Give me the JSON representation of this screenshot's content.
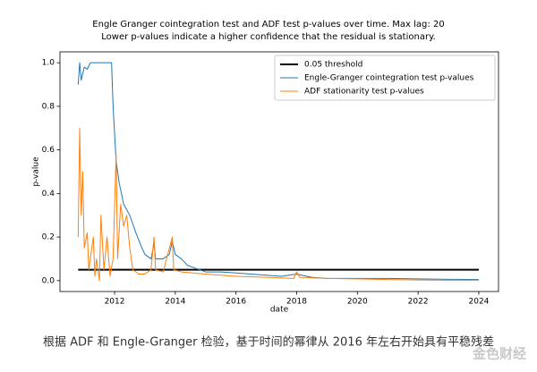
{
  "chart_data": {
    "type": "line",
    "title": "Engle Granger cointegration test and ADF test p-values over time. Max lag: 20",
    "subtitle": "Lower p-values indicate a higher confidence that the residual is stationary.",
    "xlabel": "date",
    "ylabel": "p-value",
    "xlim": [
      2010.2,
      2024.65
    ],
    "xticks": [
      2012,
      2014,
      2016,
      2018,
      2020,
      2022,
      2024
    ],
    "ylim": [
      -0.05,
      1.05
    ],
    "yticks": [
      {
        "value": 0,
        "label": "0.0"
      },
      0.2,
      0.4,
      0.6,
      0.8,
      {
        "value": 1,
        "label": "1.0"
      }
    ],
    "grid": false,
    "legend": "upper right",
    "series": [
      {
        "name": "0.05 threshold",
        "color": "#000000",
        "x": [
          2010.8,
          2024
        ],
        "values": [
          0.05,
          0.05
        ]
      },
      {
        "name": "Engle-Granger cointegration test p-values",
        "color": "#1f77b4",
        "x": [
          2010.8,
          2010.85,
          2010.9,
          2011.0,
          2011.1,
          2011.2,
          2011.5,
          2011.9,
          2011.95,
          2012.05,
          2012.15,
          2012.3,
          2012.5,
          2012.7,
          2012.9,
          2013.0,
          2013.2,
          2013.3,
          2013.35,
          2013.6,
          2013.8,
          2013.9,
          2014.0,
          2014.2,
          2014.4,
          2014.6,
          2015.0,
          2015.5,
          2016.0,
          2016.5,
          2017.0,
          2017.5,
          2018.0,
          2018.5,
          2019.0,
          2020.0,
          2021.0,
          2022.0,
          2023.0,
          2024.0
        ],
        "values": [
          0.9,
          1.0,
          0.92,
          0.98,
          0.97,
          1.0,
          1.0,
          1.0,
          0.8,
          0.55,
          0.45,
          0.35,
          0.3,
          0.22,
          0.15,
          0.12,
          0.1,
          0.17,
          0.1,
          0.1,
          0.12,
          0.18,
          0.12,
          0.1,
          0.07,
          0.06,
          0.04,
          0.04,
          0.035,
          0.03,
          0.025,
          0.02,
          0.03,
          0.015,
          0.01,
          0.01,
          0.01,
          0.008,
          0.006,
          0.005
        ]
      },
      {
        "name": "ADF stationarity test p-values",
        "color": "#ff7f0e",
        "x": [
          2010.8,
          2010.85,
          2010.9,
          2010.95,
          2011.0,
          2011.1,
          2011.15,
          2011.3,
          2011.35,
          2011.4,
          2011.5,
          2011.55,
          2011.65,
          2011.75,
          2011.85,
          2011.95,
          2012.05,
          2012.1,
          2012.2,
          2012.3,
          2012.4,
          2012.5,
          2012.6,
          2012.8,
          2013.0,
          2013.2,
          2013.3,
          2013.35,
          2013.6,
          2013.9,
          2013.95,
          2014.2,
          2014.6,
          2015.0,
          2016.0,
          2017.0,
          2017.9,
          2018.0,
          2018.1,
          2019.0,
          2020.0,
          2021.0,
          2022.0,
          2023.0,
          2024.0
        ],
        "values": [
          0.2,
          0.7,
          0.3,
          0.5,
          0.15,
          0.22,
          0.05,
          0.2,
          0.02,
          0.1,
          0.0,
          0.3,
          0.05,
          0.2,
          0.02,
          0.1,
          0.58,
          0.1,
          0.35,
          0.25,
          0.3,
          0.15,
          0.05,
          0.03,
          0.03,
          0.05,
          0.2,
          0.05,
          0.04,
          0.2,
          0.05,
          0.04,
          0.035,
          0.03,
          0.02,
          0.015,
          0.01,
          0.04,
          0.015,
          0.01,
          0.008,
          0.005,
          0.003,
          0.002,
          0.002
        ]
      }
    ]
  },
  "caption": "根据 ADF 和 Engle-Granger 检验，基于时间的幂律从 2016 年左右开始具有平稳残差",
  "watermark": "金色财经"
}
